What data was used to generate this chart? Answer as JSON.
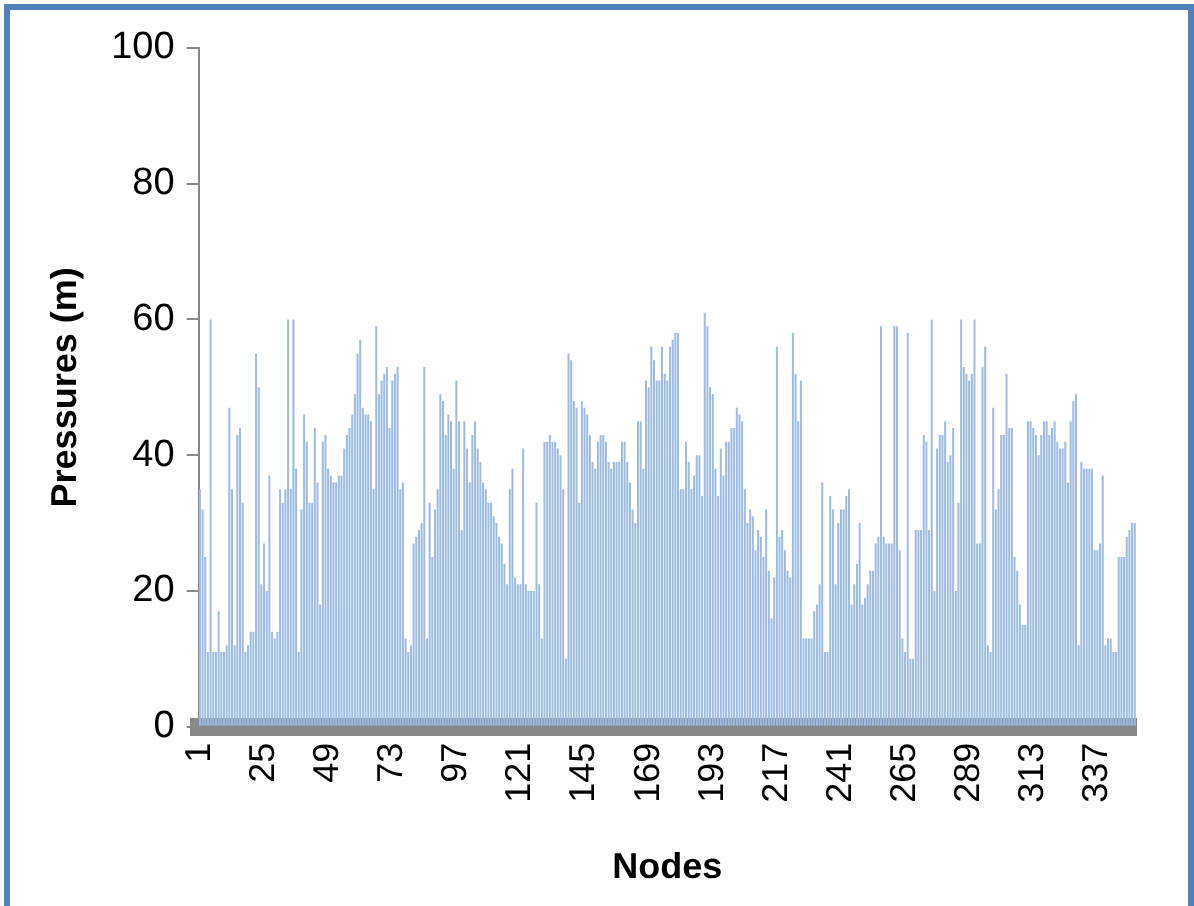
{
  "chart_data": {
    "type": "bar",
    "xlabel": "Nodes",
    "ylabel": "Pressures (m)",
    "color": "#9dbbe2",
    "ylim": [
      0,
      100
    ],
    "yticks": [
      0,
      20,
      40,
      60,
      80,
      100
    ],
    "categories": [
      "1",
      null,
      null,
      null,
      null,
      null,
      null,
      null,
      null,
      null,
      null,
      null,
      null,
      null,
      null,
      null,
      null,
      null,
      null,
      null,
      null,
      null,
      null,
      null,
      "25",
      null,
      null,
      null,
      null,
      null,
      null,
      null,
      null,
      null,
      null,
      null,
      null,
      null,
      null,
      null,
      null,
      null,
      null,
      null,
      null,
      null,
      null,
      null,
      "49",
      null,
      null,
      null,
      null,
      null,
      null,
      null,
      null,
      null,
      null,
      null,
      null,
      null,
      null,
      null,
      null,
      null,
      null,
      null,
      null,
      null,
      null,
      null,
      "73",
      null,
      null,
      null,
      null,
      null,
      null,
      null,
      null,
      null,
      null,
      null,
      null,
      null,
      null,
      null,
      null,
      null,
      null,
      null,
      null,
      null,
      null,
      null,
      "97",
      null,
      null,
      null,
      null,
      null,
      null,
      null,
      null,
      null,
      null,
      null,
      null,
      null,
      null,
      null,
      null,
      null,
      null,
      null,
      null,
      null,
      null,
      null,
      "121",
      null,
      null,
      null,
      null,
      null,
      null,
      null,
      null,
      null,
      null,
      null,
      null,
      null,
      null,
      null,
      null,
      null,
      null,
      null,
      null,
      null,
      null,
      null,
      "145",
      null,
      null,
      null,
      null,
      null,
      null,
      null,
      null,
      null,
      null,
      null,
      null,
      null,
      null,
      null,
      null,
      null,
      null,
      null,
      null,
      null,
      null,
      null,
      "169",
      null,
      null,
      null,
      null,
      null,
      null,
      null,
      null,
      null,
      null,
      null,
      null,
      null,
      null,
      null,
      null,
      null,
      null,
      null,
      null,
      null,
      null,
      null,
      "193",
      null,
      null,
      null,
      null,
      null,
      null,
      null,
      null,
      null,
      null,
      null,
      null,
      null,
      null,
      null,
      null,
      null,
      null,
      null,
      null,
      null,
      null,
      null,
      "217",
      null,
      null,
      null,
      null,
      null,
      null,
      null,
      null,
      null,
      null,
      null,
      null,
      null,
      null,
      null,
      null,
      null,
      null,
      null,
      null,
      null,
      null,
      null,
      "241",
      null,
      null,
      null,
      null,
      null,
      null,
      null,
      null,
      null,
      null,
      null,
      null,
      null,
      null,
      null,
      null,
      null,
      null,
      null,
      null,
      null,
      null,
      null,
      "265",
      null,
      null,
      null,
      null,
      null,
      null,
      null,
      null,
      null,
      null,
      null,
      null,
      null,
      null,
      null,
      null,
      null,
      null,
      null,
      null,
      null,
      null,
      null,
      "289",
      null,
      null,
      null,
      null,
      null,
      null,
      null,
      null,
      null,
      null,
      null,
      null,
      null,
      null,
      null,
      null,
      null,
      null,
      null,
      null,
      null,
      null,
      null,
      "313",
      null,
      null,
      null,
      null,
      null,
      null,
      null,
      null,
      null,
      null,
      null,
      null,
      null,
      null,
      null,
      null,
      null,
      null,
      null,
      null,
      null,
      null,
      null,
      "337",
      null,
      null,
      null,
      null,
      null,
      null,
      null,
      null,
      null,
      null,
      null,
      null,
      null,
      null
    ],
    "values": [
      35,
      32,
      25,
      11,
      60,
      11,
      11,
      17,
      11,
      11,
      12,
      47,
      35,
      12,
      43,
      44,
      33,
      11,
      12,
      14,
      14,
      55,
      50,
      21,
      27,
      20,
      37,
      14,
      13,
      14,
      35,
      33,
      35,
      60,
      35,
      60,
      38,
      11,
      32,
      46,
      42,
      33,
      33,
      44,
      36,
      18,
      42,
      43,
      38,
      37,
      36,
      36,
      37,
      37,
      41,
      43,
      44,
      46,
      49,
      55,
      57,
      47,
      46,
      46,
      45,
      35,
      59,
      49,
      51,
      52,
      53,
      44,
      51,
      52,
      53,
      35,
      36,
      13,
      11,
      12,
      27,
      28,
      29,
      30,
      53,
      13,
      33,
      25,
      32,
      35,
      49,
      48,
      43,
      46,
      45,
      38,
      51,
      45,
      29,
      45,
      41,
      36,
      43,
      45,
      41,
      39,
      36,
      35,
      33,
      33,
      31,
      30,
      28,
      27,
      24,
      21,
      35,
      38,
      22,
      21,
      21,
      41,
      21,
      20,
      20,
      20,
      33,
      21,
      13,
      42,
      42,
      43,
      42,
      42,
      41,
      40,
      35,
      10,
      55,
      54,
      48,
      47,
      33,
      48,
      47,
      46,
      43,
      39,
      38,
      42,
      43,
      43,
      42,
      39,
      38,
      39,
      39,
      39,
      42,
      42,
      39,
      36,
      32,
      30,
      45,
      45,
      38,
      51,
      50,
      56,
      54,
      51,
      51,
      56,
      52,
      51,
      56,
      57,
      58,
      58,
      35,
      35,
      42,
      39,
      35,
      37,
      40,
      40,
      34,
      61,
      59,
      50,
      49,
      38,
      34,
      41,
      37,
      42,
      42,
      44,
      44,
      47,
      46,
      45,
      35,
      30,
      32,
      31,
      26,
      29,
      28,
      25,
      32,
      23,
      16,
      22,
      56,
      28,
      29,
      26,
      23,
      22,
      58,
      52,
      45,
      51,
      13,
      13,
      13,
      13,
      17,
      18,
      21,
      36,
      11,
      11,
      34,
      32,
      21,
      30,
      32,
      32,
      34,
      35,
      18,
      21,
      24,
      30,
      18,
      19,
      21,
      23,
      23,
      27,
      28,
      59,
      28,
      27,
      27,
      27,
      59,
      59,
      26,
      13,
      11,
      58,
      10,
      10,
      29,
      29,
      29,
      43,
      42,
      29,
      60,
      20,
      41,
      43,
      43,
      45,
      39,
      40,
      44,
      20,
      33,
      60,
      53,
      52,
      51,
      52,
      60,
      27,
      27,
      53,
      56,
      12,
      11,
      47,
      32,
      35,
      43,
      43,
      52,
      44,
      44,
      25,
      23,
      18,
      15,
      15,
      45,
      45,
      44,
      43,
      40,
      43,
      45,
      45,
      43,
      44,
      45,
      42,
      41,
      41,
      42,
      36,
      45,
      48,
      49,
      12,
      39,
      38,
      38,
      38,
      38,
      26,
      26,
      27,
      37,
      12,
      13,
      13,
      11,
      11,
      25,
      25,
      25,
      28,
      29,
      30,
      30
    ]
  }
}
